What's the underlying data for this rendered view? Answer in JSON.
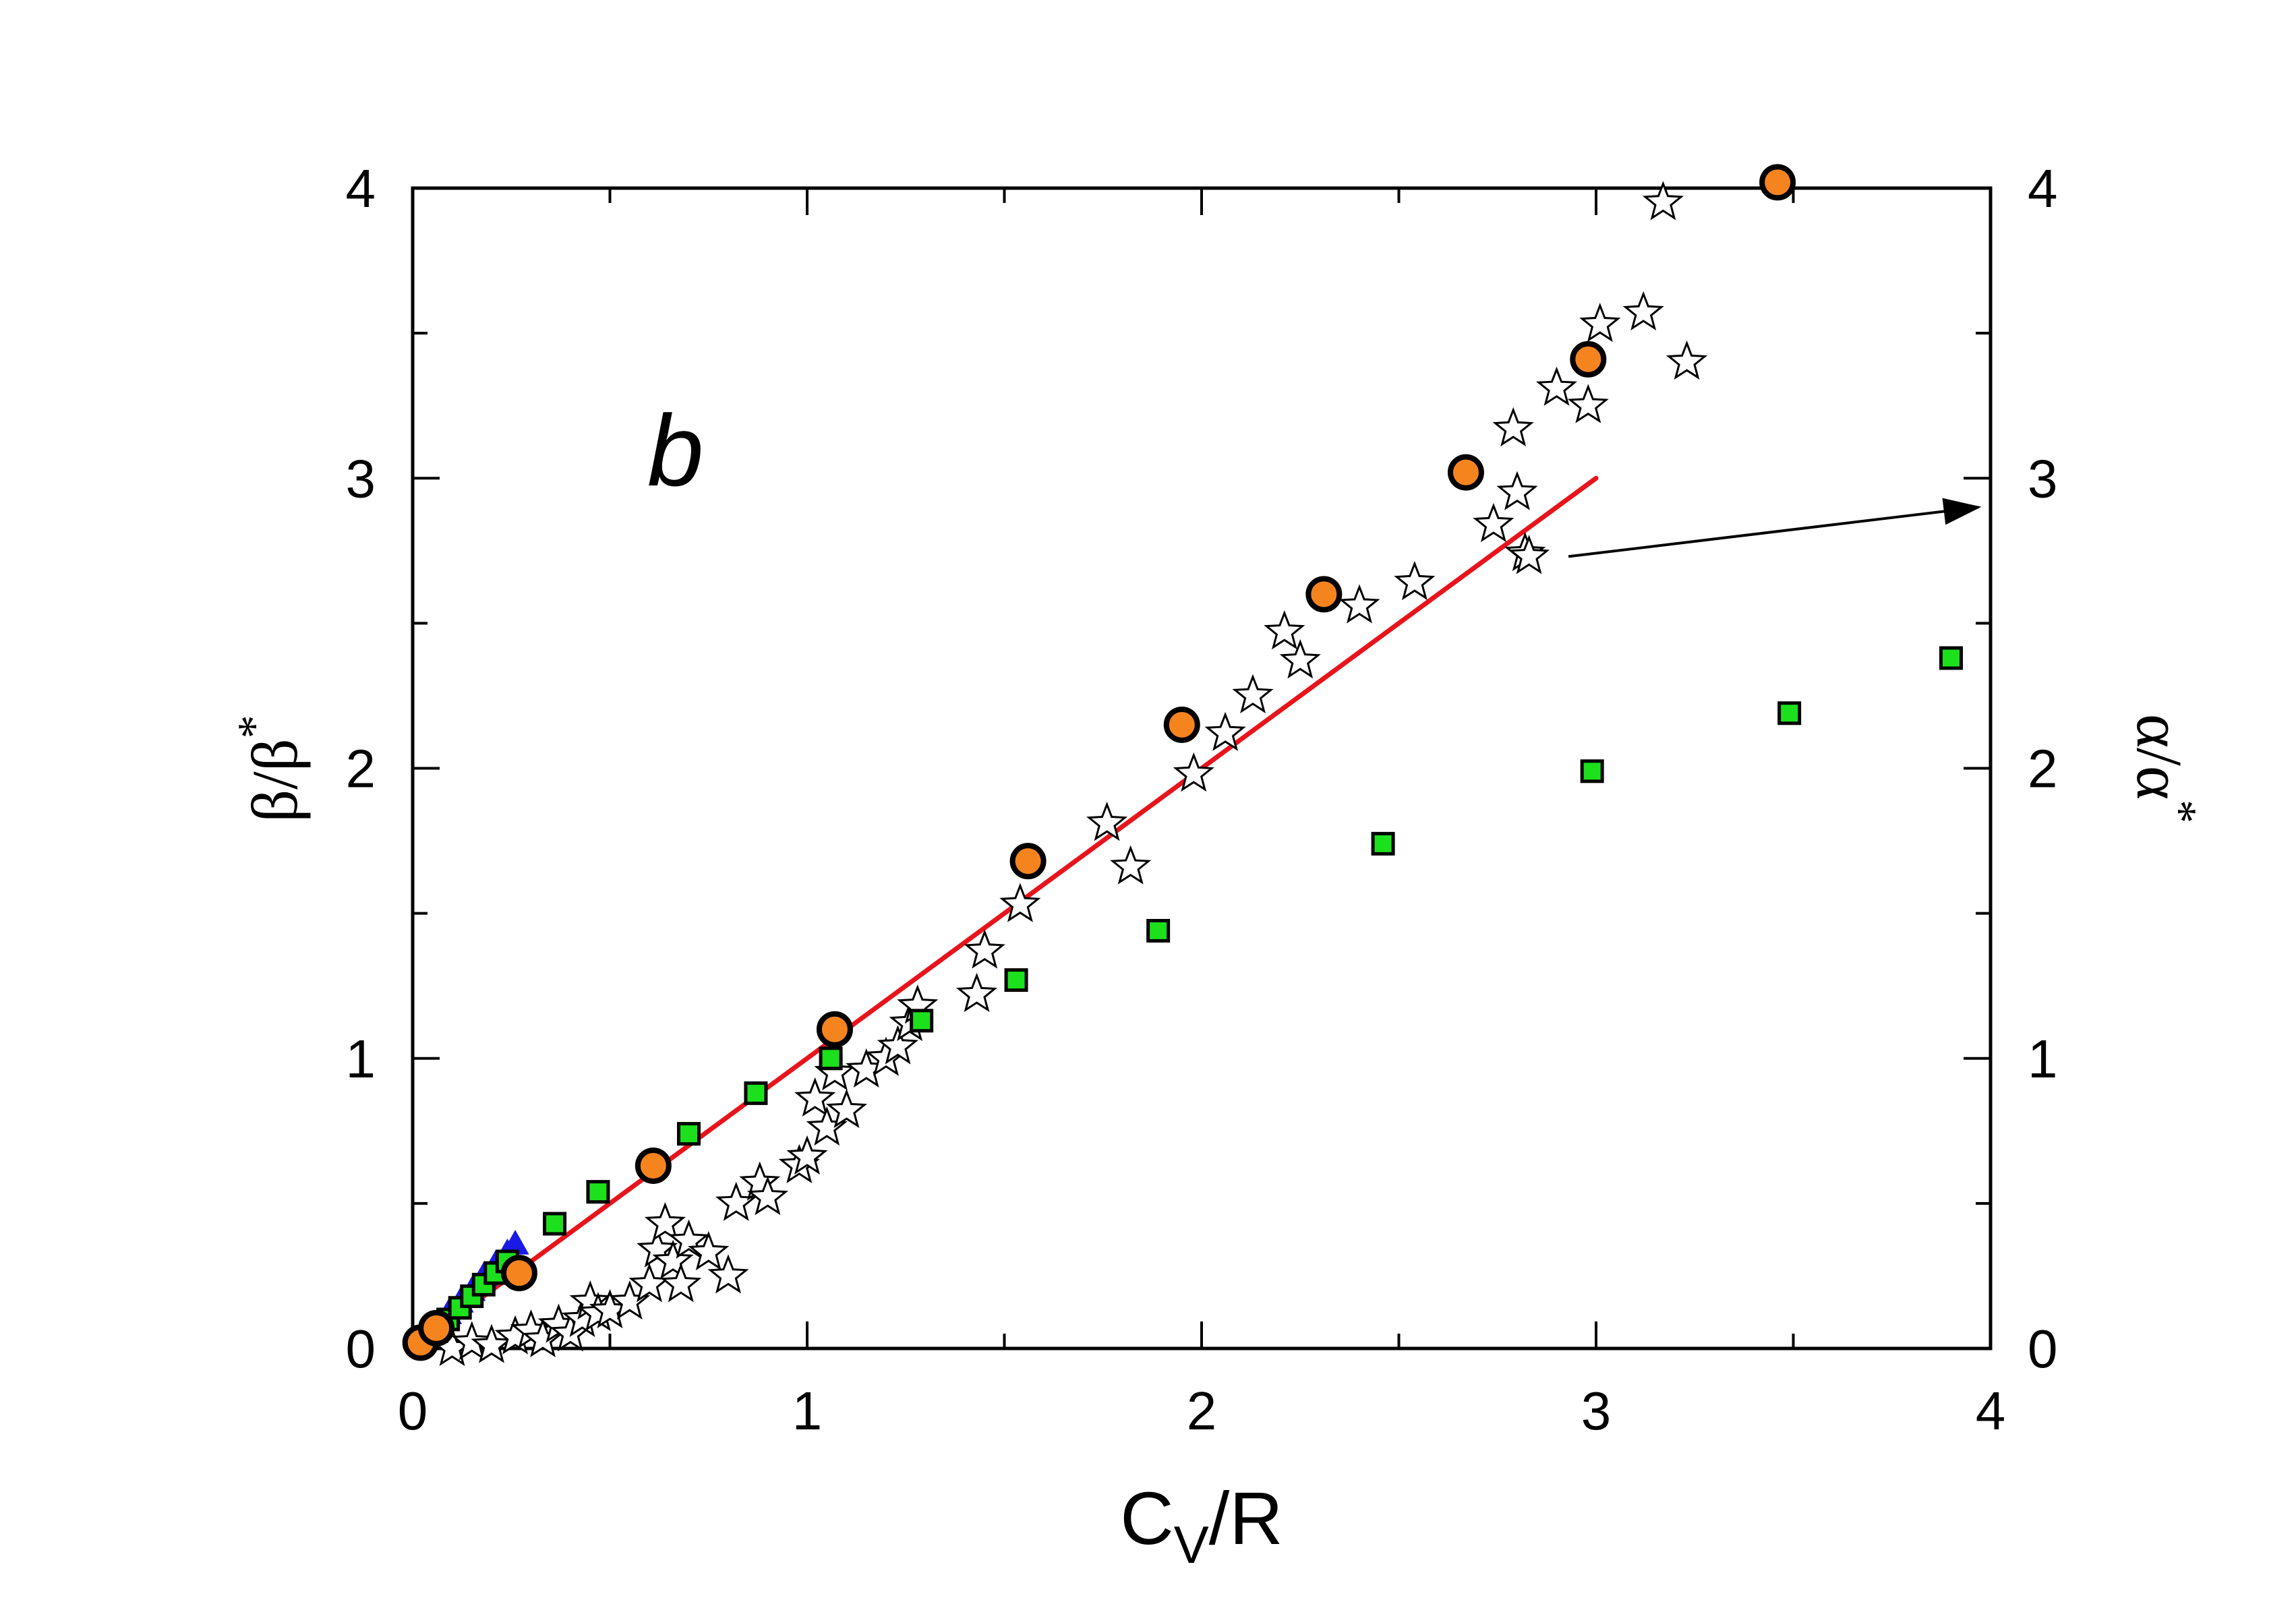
{
  "chart_data": {
    "type": "scatter",
    "panel_label": "b",
    "xlabel": {
      "main": "C",
      "sub": "V",
      "tail": "/R"
    },
    "ylabel_left": {
      "main": "β/β",
      "sup": "*"
    },
    "ylabel_right": {
      "main": "α/α",
      "sup": "*"
    },
    "xlim": [
      0,
      4
    ],
    "ylim": [
      0,
      4
    ],
    "y2lim": [
      0,
      4
    ],
    "xticks": [
      "0",
      "1",
      "2",
      "3",
      "4"
    ],
    "yticks": [
      "0",
      "1",
      "2",
      "3",
      "4"
    ],
    "y2ticks": [
      "0",
      "1",
      "2",
      "3",
      "4"
    ],
    "colors": {
      "circle_fill": "#F5841F",
      "square_fill": "#1DE01D",
      "fit_line": "#E8141B",
      "blue": "#1A1AE6",
      "axis": "#000000"
    },
    "series": [
      {
        "name": "orange-circles",
        "marker": "circle",
        "x": [
          0.02,
          0.06,
          0.27,
          0.61,
          1.07,
          1.56,
          1.95,
          2.31,
          2.67,
          2.98,
          3.46
        ],
        "y": [
          0.02,
          0.07,
          0.26,
          0.63,
          1.1,
          1.68,
          2.15,
          2.6,
          3.02,
          3.41,
          4.02
        ]
      },
      {
        "name": "green-squares",
        "marker": "square",
        "x": [
          0.05,
          0.09,
          0.12,
          0.15,
          0.18,
          0.21,
          0.24,
          0.36,
          0.47,
          0.7,
          0.87,
          1.06,
          1.29,
          1.53,
          1.89,
          2.46,
          2.99,
          3.49,
          3.9
        ],
        "y": [
          0.06,
          0.1,
          0.14,
          0.18,
          0.22,
          0.26,
          0.3,
          0.43,
          0.54,
          0.74,
          0.88,
          1.0,
          1.13,
          1.27,
          1.44,
          1.74,
          1.99,
          2.19,
          2.38
        ]
      },
      {
        "name": "stars",
        "marker": "star",
        "x": [
          0.1,
          0.15,
          0.2,
          0.26,
          0.3,
          0.33,
          0.37,
          0.4,
          0.43,
          0.45,
          0.47,
          0.5,
          0.55,
          0.6,
          0.62,
          0.64,
          0.66,
          0.68,
          0.7,
          0.75,
          0.8,
          0.82,
          0.88,
          0.9,
          0.98,
          1.0,
          1.02,
          1.05,
          1.07,
          1.1,
          1.15,
          1.2,
          1.23,
          1.26,
          1.28,
          1.43,
          1.45,
          1.54,
          1.76,
          1.82,
          1.98,
          2.06,
          2.13,
          2.21,
          2.25,
          2.4,
          2.54,
          2.74,
          2.8,
          2.82,
          2.83,
          2.79,
          2.9,
          2.98,
          3.01,
          3.12,
          3.17,
          3.23
        ],
        "y": [
          0.0,
          0.02,
          0.01,
          0.04,
          0.06,
          0.03,
          0.08,
          0.05,
          0.1,
          0.16,
          0.12,
          0.13,
          0.16,
          0.22,
          0.34,
          0.43,
          0.3,
          0.22,
          0.37,
          0.33,
          0.25,
          0.5,
          0.57,
          0.52,
          0.63,
          0.66,
          0.86,
          0.76,
          0.95,
          0.82,
          0.96,
          1.0,
          1.04,
          1.12,
          1.18,
          1.22,
          1.37,
          1.53,
          1.81,
          1.66,
          1.98,
          2.12,
          2.25,
          2.47,
          2.37,
          2.56,
          2.64,
          2.84,
          2.95,
          2.74,
          2.73,
          3.17,
          3.31,
          3.25,
          3.53,
          3.57,
          3.95,
          3.4
        ]
      },
      {
        "name": "blue-small",
        "marker": "tri",
        "x": [
          0.03,
          0.06,
          0.09,
          0.12,
          0.15,
          0.18,
          0.21,
          0.24,
          0.26
        ],
        "y": [
          0.04,
          0.08,
          0.12,
          0.16,
          0.2,
          0.25,
          0.29,
          0.33,
          0.36
        ]
      }
    ],
    "fit_line": {
      "x": [
        0,
        3.0
      ],
      "y": [
        0,
        3.0
      ]
    },
    "arrow": {
      "from": [
        2.93,
        2.73
      ],
      "to": [
        3.97,
        2.9
      ]
    }
  }
}
